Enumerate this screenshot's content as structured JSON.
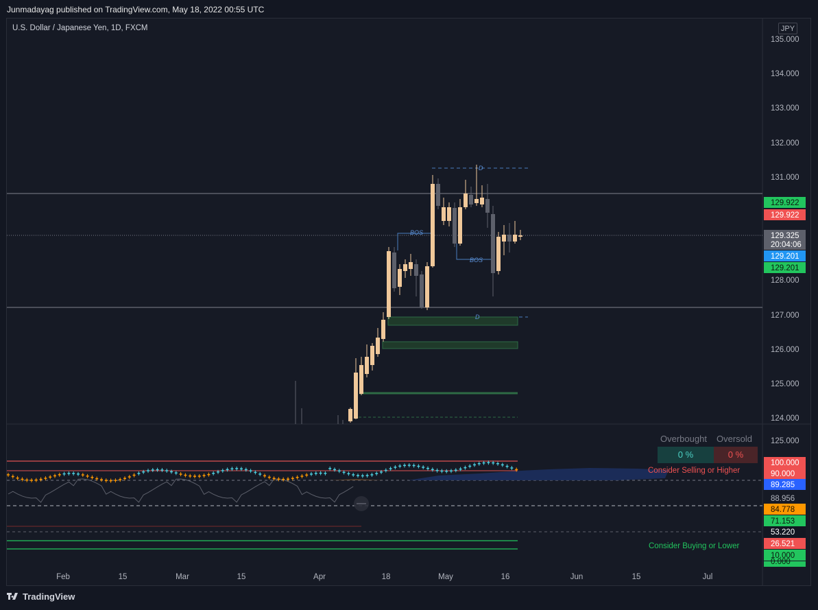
{
  "header": {
    "published_by": "Junmadayag published on TradingView.com, May 18, 2022 00:55 UTC"
  },
  "chart": {
    "symbol_line": "U.S. Dollar / Japanese Yen, 1D, FXCM",
    "currency_button": "JPY",
    "price_axis_ticks": [
      "135.000",
      "134.000",
      "133.000",
      "132.000",
      "131.000",
      "128.000",
      "127.000",
      "126.000",
      "125.000",
      "124.000"
    ],
    "price_labels": {
      "resistance_green": "129.922",
      "resistance_red": "129.922",
      "last_price": "129.325",
      "countdown": "20:04:06",
      "blue_level": "129.201",
      "green_level": "129.201"
    },
    "bos_labels": [
      "BOS",
      "BOS"
    ],
    "d_labels": [
      "D",
      "D"
    ],
    "time_axis": [
      "Feb",
      "15",
      "Mar",
      "15",
      "Apr",
      "18",
      "May",
      "16",
      "Jun",
      "15",
      "Jul"
    ]
  },
  "indicator": {
    "headers": [
      "Overbought",
      "Oversold"
    ],
    "overbought_value": "0 %",
    "oversold_value": "0 %",
    "consider_selling": "Consider Selling or Higher",
    "consider_buying": "Consider Buying or Lower",
    "axis_labels": {
      "top": "125.000",
      "l100": "100.000",
      "l90": "90.000",
      "l89": "89.285",
      "l88": "88.956",
      "l84": "84.778",
      "l71": "71.153",
      "l53": "53.220",
      "l26": "26.521",
      "l10": "10.000",
      "l0": "0.000"
    }
  },
  "colors": {
    "background": "#131722",
    "bull_candle": "#f0c89a",
    "bear_candle": "#5d606b",
    "indicator_cyan": "#4dd0e1",
    "indicator_orange": "#ff9800",
    "green_label": "#22c55e",
    "red_label": "#f05252",
    "blue_label": "#2196f3"
  },
  "footer": {
    "brand": "TradingView"
  }
}
